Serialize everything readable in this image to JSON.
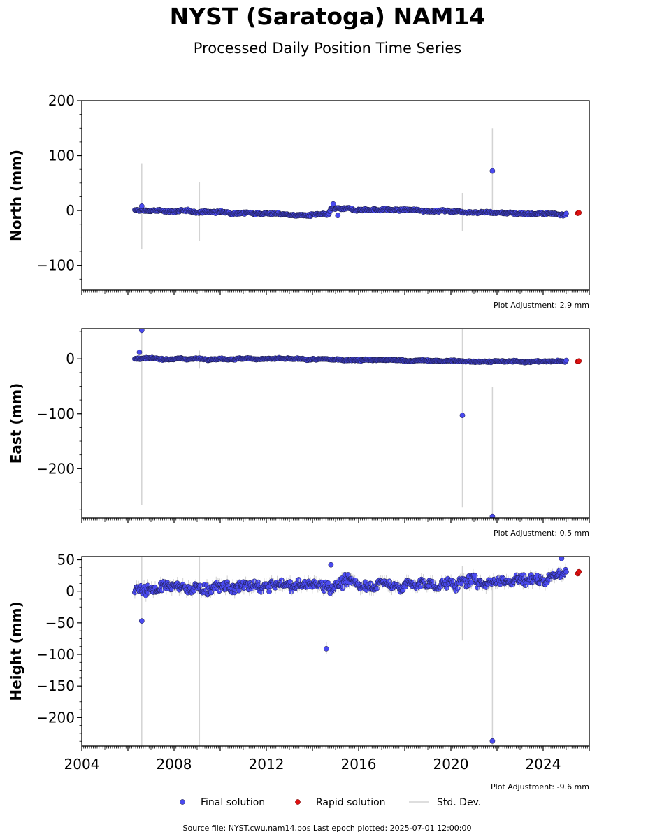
{
  "header": {
    "title": "NYST (Saratoga) NAM14",
    "subtitle": "Processed Daily Position Time Series"
  },
  "legend": {
    "final": "Final solution",
    "rapid": "Rapid solution",
    "std": "Std. Dev."
  },
  "footer": {
    "source": "Source file: NYST.cwu.nam14.pos  Last epoch plotted: 2025-07-01 12:00:00"
  },
  "colors": {
    "final": "#4a4af0",
    "final_edge": "#1a1a40",
    "rapid": "#e01010",
    "std": "#d3d3d3"
  },
  "chart_data": [
    {
      "type": "scatter",
      "ylabel": "North (mm)",
      "adjustment": "Plot Adjustment: 2.9 mm",
      "xlim": [
        2004,
        2026
      ],
      "ylim": [
        -145,
        200
      ],
      "yticks": [
        -100,
        0,
        100,
        200
      ],
      "ytick_labels": [
        "−100",
        "0",
        "100",
        "200"
      ],
      "xticks": [],
      "final_trend": [
        [
          2006.3,
          0
        ],
        [
          2008,
          -1
        ],
        [
          2010,
          -3
        ],
        [
          2012,
          -5
        ],
        [
          2013.5,
          -9
        ],
        [
          2014.7,
          -8
        ],
        [
          2014.8,
          3
        ],
        [
          2016,
          2
        ],
        [
          2018,
          1
        ],
        [
          2020,
          -1
        ],
        [
          2022,
          -4
        ],
        [
          2024,
          -6
        ],
        [
          2025.0,
          -6
        ]
      ],
      "final_noise": 3,
      "final_outliers": [
        [
          2006.6,
          8
        ],
        [
          2014.9,
          12
        ],
        [
          2015.1,
          -9
        ],
        [
          2021.8,
          72
        ]
      ],
      "rapid": [
        [
          2025.5,
          -5
        ],
        [
          2025.55,
          -4
        ]
      ],
      "std_bars": [
        [
          2006.6,
          -70,
          86
        ],
        [
          2009.1,
          -55,
          51
        ],
        [
          2020.5,
          -38,
          32
        ],
        [
          2021.8,
          -5,
          150
        ]
      ]
    },
    {
      "type": "scatter",
      "ylabel": "East (mm)",
      "adjustment": "Plot Adjustment: 0.5 mm",
      "xlim": [
        2004,
        2026
      ],
      "ylim": [
        -290,
        55
      ],
      "yticks": [
        -200,
        -100,
        0
      ],
      "ytick_labels": [
        "−200",
        "−100",
        "0"
      ],
      "xticks": [],
      "final_trend": [
        [
          2006.3,
          0
        ],
        [
          2008,
          0
        ],
        [
          2010,
          0
        ],
        [
          2012,
          0
        ],
        [
          2014,
          -1
        ],
        [
          2016,
          -2
        ],
        [
          2018,
          -3
        ],
        [
          2020,
          -4
        ],
        [
          2022,
          -5
        ],
        [
          2024,
          -5
        ],
        [
          2025.0,
          -4
        ]
      ],
      "final_noise": 2,
      "final_outliers": [
        [
          2006.5,
          12
        ],
        [
          2006.6,
          52
        ],
        [
          2020.5,
          -103
        ],
        [
          2021.8,
          -287
        ]
      ],
      "rapid": [
        [
          2025.5,
          -5
        ],
        [
          2025.55,
          -4
        ]
      ],
      "std_bars": [
        [
          2006.6,
          -267,
          55
        ],
        [
          2009.1,
          -18,
          15
        ],
        [
          2020.5,
          -270,
          55
        ],
        [
          2021.8,
          -290,
          -52
        ]
      ]
    },
    {
      "type": "scatter",
      "ylabel": "Height (mm)",
      "adjustment": "Plot Adjustment: -9.6 mm",
      "xlim": [
        2004,
        2026
      ],
      "ylim": [
        -245,
        55
      ],
      "yticks": [
        -200,
        -150,
        -100,
        -50,
        0,
        50
      ],
      "ytick_labels": [
        "−200",
        "−150",
        "−100",
        "−50",
        "0",
        "50"
      ],
      "xticks": [
        2004,
        2008,
        2012,
        2016,
        2020,
        2024
      ],
      "xtick_labels": [
        "2004",
        "2008",
        "2012",
        "2016",
        "2020",
        "2024"
      ],
      "final_trend": [
        [
          2006.3,
          5
        ],
        [
          2008,
          5
        ],
        [
          2010,
          5
        ],
        [
          2012,
          8
        ],
        [
          2014,
          10
        ],
        [
          2016,
          12
        ],
        [
          2018,
          10
        ],
        [
          2020,
          12
        ],
        [
          2022,
          18
        ],
        [
          2024,
          20
        ],
        [
          2025.0,
          32
        ]
      ],
      "final_noise": 12,
      "final_outliers": [
        [
          2006.6,
          -47
        ],
        [
          2014.6,
          -91
        ],
        [
          2014.8,
          42
        ],
        [
          2021.8,
          -237
        ],
        [
          2024.8,
          52
        ]
      ],
      "rapid": [
        [
          2025.5,
          28
        ],
        [
          2025.55,
          31
        ]
      ],
      "std_bars": [
        [
          2006.6,
          -245,
          55
        ],
        [
          2009.1,
          -245,
          55
        ],
        [
          2020.5,
          -78,
          40
        ],
        [
          2021.8,
          -245,
          20
        ],
        [
          2014.6,
          -100,
          -80
        ]
      ]
    }
  ]
}
